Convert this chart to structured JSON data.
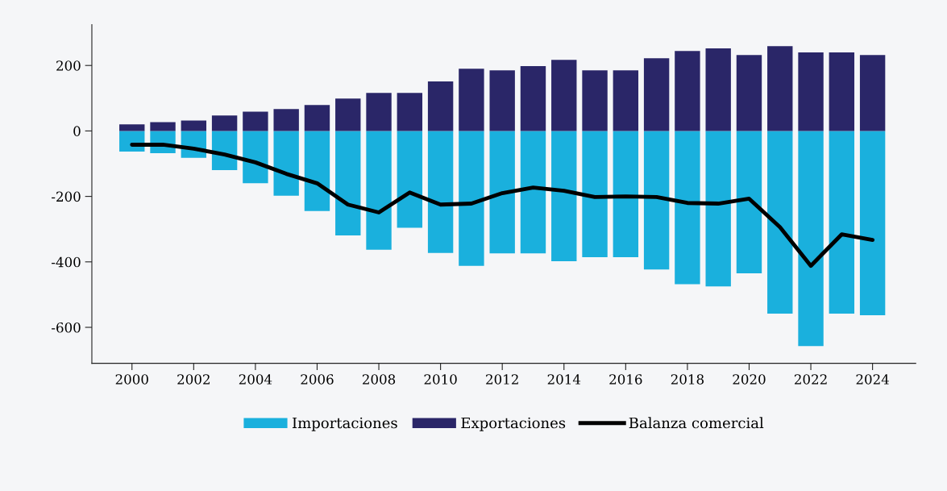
{
  "chart_data": {
    "type": "bar",
    "x": [
      2000,
      2001,
      2002,
      2003,
      2004,
      2005,
      2006,
      2007,
      2008,
      2009,
      2010,
      2011,
      2012,
      2013,
      2014,
      2015,
      2016,
      2017,
      2018,
      2019,
      2020,
      2021,
      2022,
      2023,
      2024
    ],
    "series": [
      {
        "name": "Importaciones",
        "color": "#1ab0dd",
        "values": [
          -63,
          -68,
          -82,
          -120,
          -160,
          -198,
          -245,
          -319,
          -363,
          -296,
          -373,
          -412,
          -374,
          -374,
          -398,
          -386,
          -386,
          -423,
          -468,
          -475,
          -435,
          -558,
          -657,
          -558,
          -563
        ]
      },
      {
        "name": "Exportaciones",
        "color": "#2a2668",
        "values": [
          20,
          27,
          32,
          47,
          59,
          67,
          79,
          99,
          116,
          116,
          151,
          190,
          185,
          198,
          217,
          185,
          185,
          222,
          244,
          252,
          232,
          259,
          240,
          240,
          232
        ]
      },
      {
        "name": "Balanza comercial",
        "type": "line",
        "color": "#000000",
        "values": [
          -42,
          -42,
          -54,
          -72,
          -96,
          -131,
          -160,
          -225,
          -249,
          -188,
          -225,
          -222,
          -190,
          -173,
          -183,
          -202,
          -200,
          -202,
          -220,
          -222,
          -207,
          -294,
          -412,
          -316,
          -333
        ]
      }
    ],
    "xlim": [
      1998.7,
      2025.4
    ],
    "xticks": [
      2000,
      2002,
      2004,
      2006,
      2008,
      2010,
      2012,
      2014,
      2016,
      2018,
      2020,
      2022,
      2024
    ],
    "ylim": [
      -710,
      325
    ],
    "yticks": [
      {
        "value": -600,
        "label": "-600"
      },
      {
        "value": -400,
        "label": "-400"
      },
      {
        "value": -200,
        "label": "-200"
      },
      0,
      200
    ],
    "stacked": true,
    "grid": false,
    "legend": "bottom",
    "marker": "none",
    "line_style": "solid"
  }
}
